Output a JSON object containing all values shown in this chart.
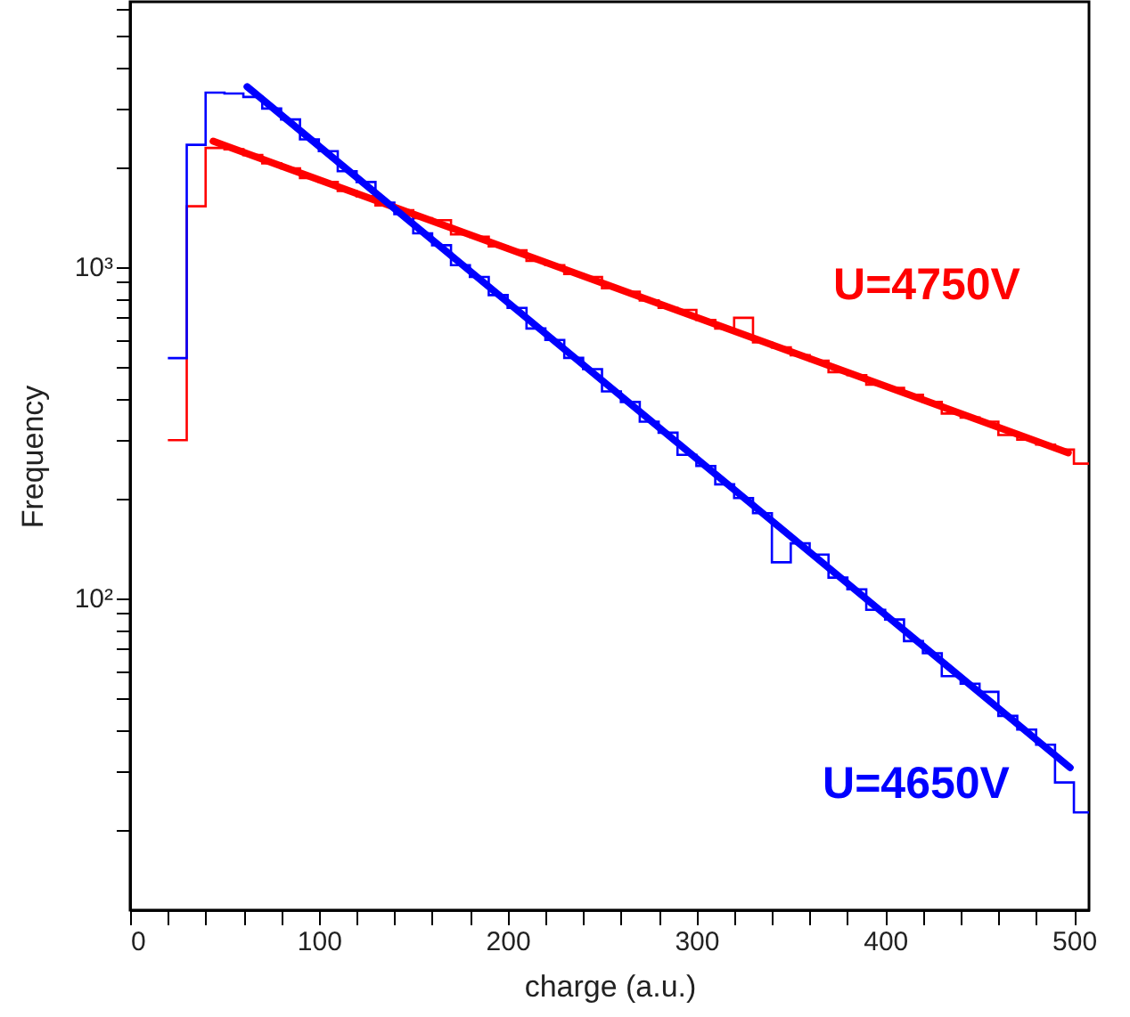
{
  "chart_data": {
    "type": "histogram",
    "xlabel": "charge (a.u.)",
    "ylabel": "Frequency",
    "log": "y",
    "grid": false,
    "bins": [
      20,
      30,
      40,
      50,
      60,
      70,
      80,
      90,
      100,
      110,
      120,
      130,
      140,
      150,
      160,
      170,
      180,
      190,
      200,
      210,
      220,
      230,
      240,
      250,
      260,
      270,
      280,
      290,
      300,
      310,
      320,
      330,
      340,
      350,
      360,
      370,
      380,
      390,
      400,
      410,
      420,
      430,
      440,
      450,
      460,
      470,
      480,
      490,
      500,
      510
    ],
    "xlim": [
      0,
      508
    ],
    "ylim": [
      11.4,
      6300
    ],
    "xticks": [
      0,
      {
        "value": 20,
        "label": null
      },
      {
        "value": 40,
        "label": null
      },
      {
        "value": 60,
        "label": null
      },
      {
        "value": 80,
        "label": null
      },
      100,
      {
        "value": 120,
        "label": null
      },
      {
        "value": 140,
        "label": null
      },
      {
        "value": 160,
        "label": null
      },
      {
        "value": 180,
        "label": null
      },
      200,
      {
        "value": 220,
        "label": null
      },
      {
        "value": 240,
        "label": null
      },
      {
        "value": 260,
        "label": null
      },
      {
        "value": 280,
        "label": null
      },
      300,
      {
        "value": 320,
        "label": null
      },
      {
        "value": 340,
        "label": null
      },
      {
        "value": 360,
        "label": null
      },
      {
        "value": 380,
        "label": null
      },
      400,
      {
        "value": 420,
        "label": null
      },
      {
        "value": 440,
        "label": null
      },
      {
        "value": 460,
        "label": null
      },
      {
        "value": 480,
        "label": null
      },
      500
    ],
    "yticks": [
      {
        "value": 20,
        "label": null
      },
      {
        "value": 30,
        "label": null
      },
      {
        "value": 40,
        "label": null
      },
      {
        "value": 50,
        "label": null
      },
      {
        "value": 60,
        "label": null
      },
      {
        "value": 70,
        "label": null
      },
      {
        "value": 80,
        "label": null
      },
      {
        "value": 90,
        "label": null
      },
      {
        "value": 100,
        "label": "10²"
      },
      {
        "value": 200,
        "label": null
      },
      {
        "value": 300,
        "label": null
      },
      {
        "value": 400,
        "label": null
      },
      {
        "value": 500,
        "label": null
      },
      {
        "value": 600,
        "label": null
      },
      {
        "value": 700,
        "label": null
      },
      {
        "value": 800,
        "label": null
      },
      {
        "value": 900,
        "label": null
      },
      {
        "value": 1000,
        "label": "10³"
      },
      {
        "value": 2000,
        "label": null
      },
      {
        "value": 3000,
        "label": null
      },
      {
        "value": 4000,
        "label": null
      },
      {
        "value": 5000,
        "label": null
      },
      {
        "value": 6000,
        "label": null
      }
    ],
    "series": [
      {
        "name": "U=4750V",
        "color": "#ff0000",
        "values": [
          299,
          1520,
          2280,
          2260,
          2170,
          2050,
          1980,
          1850,
          1800,
          1690,
          1630,
          1530,
          1480,
          1400,
          1380,
          1250,
          1230,
          1150,
          1120,
          1040,
          1010,
          950,
          930,
          860,
          840,
          790,
          750,
          740,
          690,
          650,
          700,
          590,
          570,
          540,
          520,
          480,
          470,
          440,
          430,
          410,
          390,
          360,
          350,
          340,
          310,
          300,
          290,
          280,
          254
        ]
      },
      {
        "name": "U=4650V",
        "color": "#0000ff",
        "values": [
          529,
          2330,
          3350,
          3330,
          3250,
          3000,
          2780,
          2420,
          2230,
          1940,
          1800,
          1560,
          1440,
          1260,
          1160,
          1010,
          930,
          820,
          750,
          650,
          600,
          530,
          490,
          420,
          390,
          340,
          315,
          270,
          250,
          220,
          200,
          180,
          128,
          146,
          135,
          115,
          106,
          92,
          86,
          74,
          68,
          58,
          55,
          52,
          44,
          40,
          36,
          27.7,
          22.5
        ]
      },
      {
        "type": "line",
        "color": "#ff0000",
        "x": [
          44,
          497
        ],
        "values": [
          2390,
          274
        ]
      },
      {
        "type": "line",
        "color": "#0000ff",
        "x": [
          62,
          498
        ],
        "values": [
          3490,
          30.7
        ]
      }
    ]
  }
}
